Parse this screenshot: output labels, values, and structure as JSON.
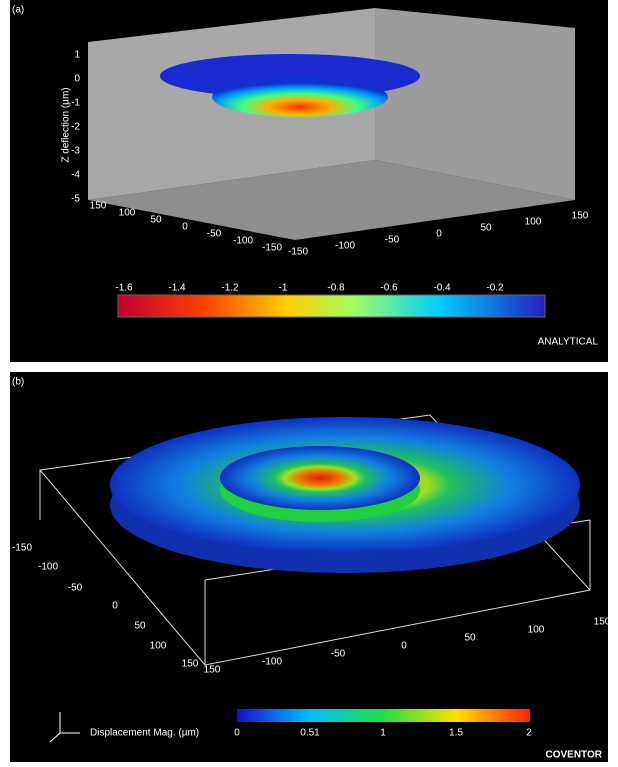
{
  "panels": [
    {
      "label": "(a)",
      "z_axis_label": "Z deflection (µm)",
      "z_ticks": [
        "1",
        "0",
        "-1",
        "-2",
        "-3",
        "-4",
        "-5"
      ],
      "left_ticks": [
        "150",
        "100",
        "50",
        "0",
        "-50",
        "-100",
        "-150"
      ],
      "right_ticks": [
        "-150",
        "-100",
        "-50",
        "0",
        "50",
        "100",
        "150"
      ],
      "colorbar_ticks": [
        "-1.6",
        "-1.4",
        "-1.2",
        "-1",
        "-0.8",
        "-0.6",
        "-0.4",
        "-0.2"
      ],
      "caption": "ANALYTICAL"
    },
    {
      "label": "(b)",
      "colorbar_title": "Displacement Mag. (µm)",
      "left_ticks": [
        "-150",
        "-100",
        "-50",
        "0",
        "50",
        "100",
        "150",
        "150"
      ],
      "right_ticks": [
        "-100",
        "-50",
        "0",
        "50",
        "100",
        "150"
      ],
      "colorbar_ticks": [
        "0",
        "0.51",
        "1",
        "1.5",
        "2"
      ],
      "caption": "COVENTOR"
    }
  ]
}
